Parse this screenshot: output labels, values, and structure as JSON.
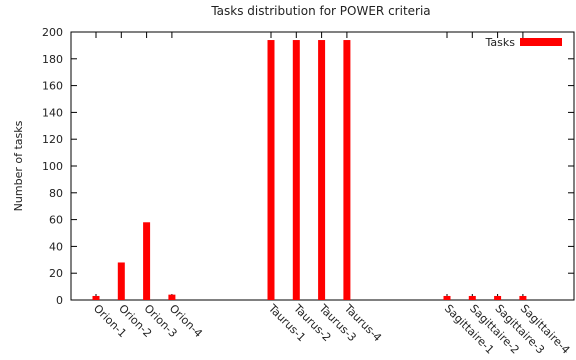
{
  "chart_data": {
    "type": "bar",
    "title": "Tasks distribution for POWER criteria",
    "xlabel": "",
    "ylabel": "Number of tasks",
    "ylim": [
      0,
      200
    ],
    "yticks": [
      0,
      20,
      40,
      60,
      80,
      100,
      120,
      140,
      160,
      180,
      200
    ],
    "grid": false,
    "legend_position": "top-right",
    "categories": [
      "Orion-1",
      "Orion-2",
      "Orion-3",
      "Orion-4",
      "Taurus-1",
      "Taurus-2",
      "Taurus-3",
      "Taurus-4",
      "Sagittaire-1",
      "Sagittaire-2",
      "Sagittaire-3",
      "Sagittaire-4"
    ],
    "series": [
      {
        "name": "Tasks",
        "color": "#ff0000",
        "values": [
          3,
          28,
          58,
          4,
          194,
          194,
          194,
          194,
          3,
          3,
          3,
          3
        ]
      }
    ]
  }
}
